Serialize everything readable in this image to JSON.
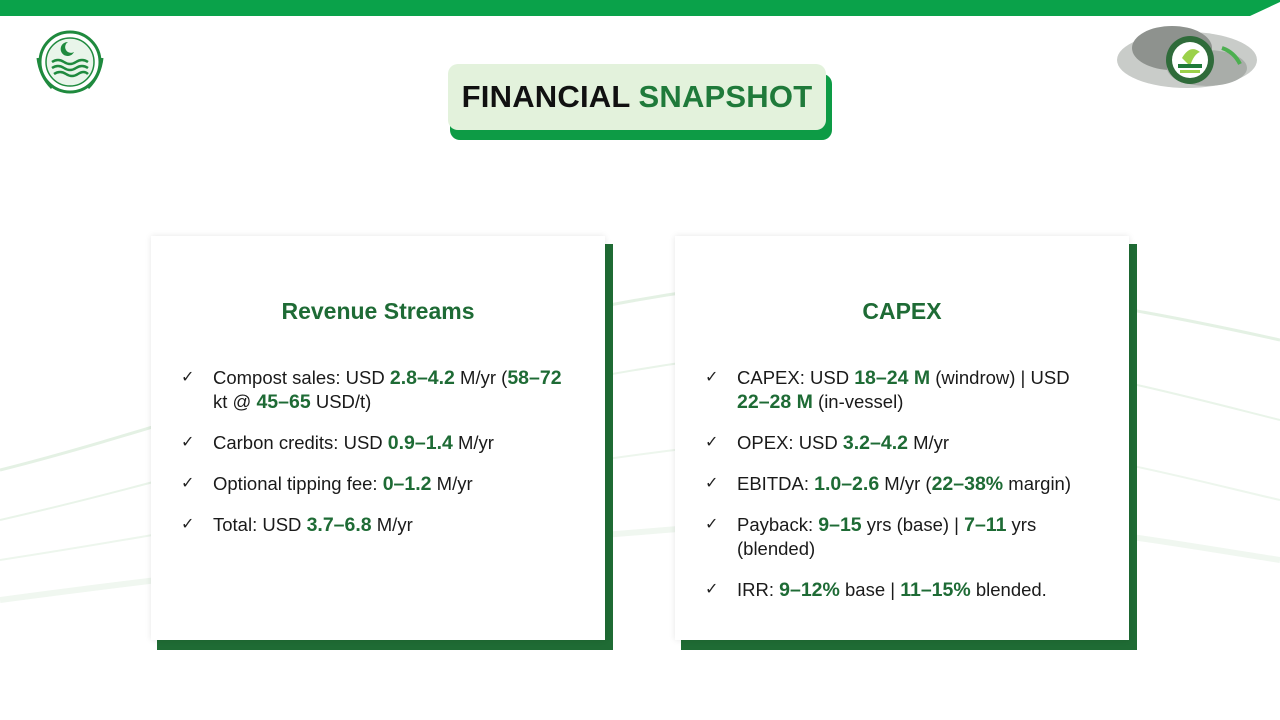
{
  "title": {
    "part1": "FINANCIAL",
    "part2": "SNAPSHOT"
  },
  "colors": {
    "brand_green": "#0aa24a",
    "dark_green": "#1e6b35",
    "title_bg": "#e3f2dc"
  },
  "icons": {
    "bullet": "check-icon"
  },
  "logos": {
    "left": "punjab-emblem-icon",
    "right": "suthra-punjab-logo-icon"
  },
  "revenue": {
    "title": "Revenue Streams",
    "items": [
      {
        "p1": "Compost sales: USD ",
        "v1": "2.8–4.2",
        "p2": " M/yr (",
        "v2": "58–72",
        "p3": " kt @ ",
        "v3": "45–65",
        "p4": " USD/t)"
      },
      {
        "p1": "Carbon credits: USD ",
        "v1": "0.9–1.4",
        "p2": " M/yr"
      },
      {
        "p1": "Optional tipping fee: ",
        "v1": "0–1.2",
        "p2": " M/yr"
      },
      {
        "p1": "Total: USD ",
        "v1": "3.7–6.8",
        "p2": " M/yr"
      }
    ]
  },
  "capex": {
    "title": "CAPEX",
    "items": [
      {
        "p1": "CAPEX: USD ",
        "v1": "18–24 M",
        "p2": " (windrow) | USD ",
        "v2": "22–28 M",
        "p3": " (in-vessel)"
      },
      {
        "p1": "OPEX: USD ",
        "v1": "3.2–4.2",
        "p2": " M/yr"
      },
      {
        "p1": "EBITDA: ",
        "v1": "1.0–2.6",
        "p2": " M/yr (",
        "v2": "22–38%",
        "p3": " margin)"
      },
      {
        "p1": "Payback: ",
        "v1": "9–15",
        "p2": " yrs (base) | ",
        "v2": "7–11",
        "p3": " yrs (blended)"
      },
      {
        "p1": "IRR: ",
        "v1": "9–12%",
        "p2": " base | ",
        "v2": "11–15%",
        "p3": " blended."
      }
    ]
  }
}
